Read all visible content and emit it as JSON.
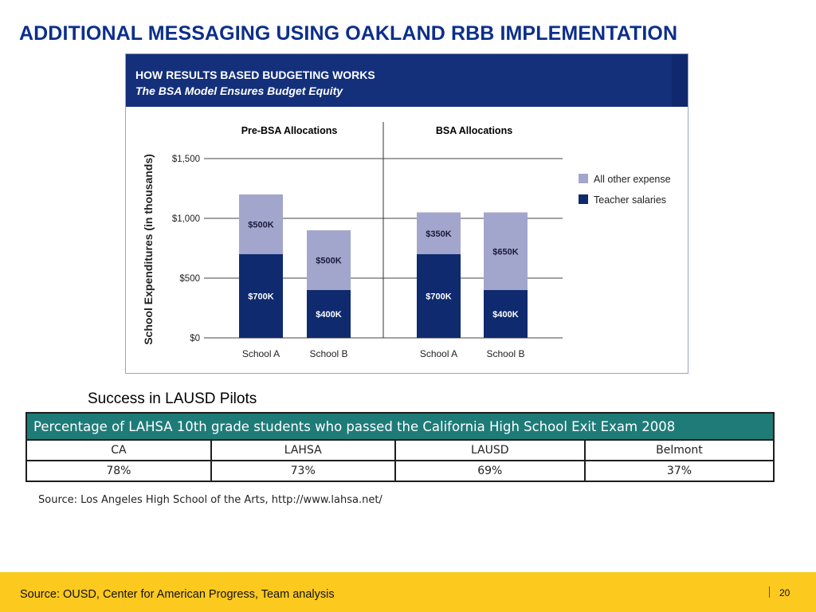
{
  "slide": {
    "title": "ADDITIONAL MESSAGING USING OAKLAND RBB IMPLEMENTATION",
    "section_heading": "Success in LAUSD Pilots",
    "footer_source": "Source:  OUSD, Center for American Progress, Team analysis",
    "page_number": "20"
  },
  "colors": {
    "title": "#0b2f8a",
    "teacher_salaries": "#0f2a6e",
    "all_other_expense": "#a3a6cc",
    "header_bg": "#14307a",
    "table_caption_bg": "#1e7b78",
    "footer_bg": "#fcc91e"
  },
  "chart_data": {
    "type": "bar",
    "stacked": true,
    "title": "HOW RESULTS BASED BUDGETING WORKS",
    "subtitle": "The BSA Model Ensures Budget Equity",
    "ylabel": "School Expenditures (in thousands)",
    "ylim": [
      0,
      1500
    ],
    "y_ticks": [
      {
        "value": 0,
        "label": "$0"
      },
      {
        "value": 500,
        "label": "$500"
      },
      {
        "value": 1000,
        "label": "$1,000"
      },
      {
        "value": 1500,
        "label": "$1,500"
      }
    ],
    "grid": true,
    "legend_position": "right",
    "groups": [
      {
        "label": "Pre-BSA Allocations",
        "categories": [
          "School A",
          "School B"
        ]
      },
      {
        "label": "BSA Allocations",
        "categories": [
          "School A",
          "School B"
        ]
      }
    ],
    "series": [
      {
        "name": "Teacher salaries",
        "values": [
          700,
          400,
          700,
          400
        ],
        "labels": [
          "$700K",
          "$400K",
          "$700K",
          "$400K"
        ]
      },
      {
        "name": "All other expense",
        "values": [
          500,
          500,
          350,
          650
        ],
        "labels": [
          "$500K",
          "$500K",
          "$350K",
          "$650K"
        ]
      }
    ]
  },
  "table": {
    "caption": "Percentage of LAHSA 10th grade students who passed the California High School Exit Exam 2008",
    "headers": [
      "CA",
      "LAHSA",
      "LAUSD",
      "Belmont"
    ],
    "rows": [
      [
        "78%",
        "73%",
        "69%",
        "37%"
      ]
    ],
    "source": "Source: Los Angeles High School of the Arts, http://www.lahsa.net/"
  }
}
